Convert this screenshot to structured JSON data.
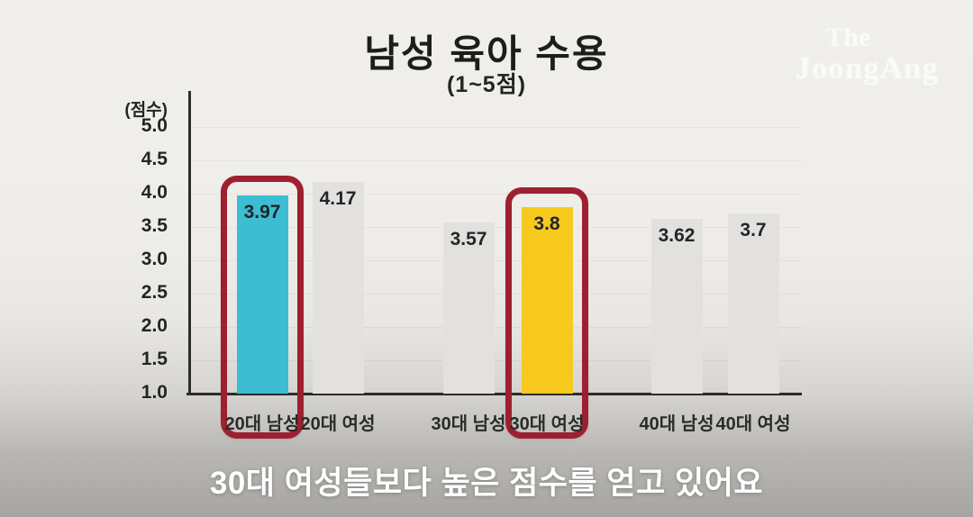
{
  "header": {
    "title": "남성 육아 수용",
    "subtitle": "(1~5점)"
  },
  "logo": {
    "line1": "The",
    "line2": "JoongAng"
  },
  "caption": "30대 여성들보다 높은 점수를 얻고 있어요",
  "chart_data": {
    "type": "bar",
    "title": "남성 육아 수용",
    "subtitle": "(1~5점)",
    "unit_label": "(점수)",
    "categories": [
      "20대 남성",
      "20대 여성",
      "30대 남성",
      "30대 여성",
      "40대 남성",
      "40대 여성"
    ],
    "values": [
      3.97,
      4.17,
      3.57,
      3.8,
      3.62,
      3.7
    ],
    "value_labels": [
      "3.97",
      "4.17",
      "3.57",
      "3.8",
      "3.62",
      "3.7"
    ],
    "bar_colors": [
      "#3cbdd1",
      "#e3e1de",
      "#e3e1de",
      "#f7c81d",
      "#e3e1de",
      "#e3e1de"
    ],
    "highlighted_indices": [
      0,
      3
    ],
    "highlight_color": "#9e2030",
    "ylim": [
      1.0,
      5.0
    ],
    "yticks": [
      "5.0",
      "4.5",
      "4.0",
      "3.5",
      "3.0",
      "2.5",
      "2.0",
      "1.5",
      "1.0"
    ],
    "ytick_values": [
      5.0,
      4.5,
      4.0,
      3.5,
      3.0,
      2.5,
      2.0,
      1.5,
      1.0
    ],
    "grid": "faint-horizontal",
    "legend": "none"
  }
}
